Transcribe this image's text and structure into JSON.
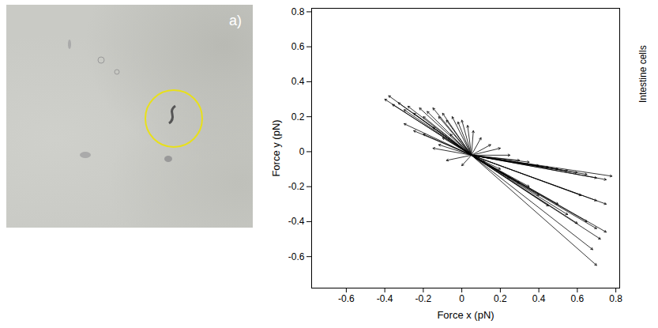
{
  "image_panel": {
    "label": "a)"
  },
  "chart_data": {
    "type": "vector",
    "xlabel": "Force x (pN)",
    "ylabel": "Force y (pN)",
    "annotations": [
      "Intestine cells"
    ],
    "origin": [
      0.05,
      -0.02
    ],
    "x": [
      -0.4,
      -0.38,
      -0.36,
      -0.33,
      -0.3,
      -0.28,
      -0.25,
      -0.22,
      -0.2,
      -0.18,
      -0.15,
      -0.12,
      -0.1,
      -0.08,
      -0.05,
      -0.02,
      0,
      0.03,
      0.06,
      -0.3,
      -0.25,
      -0.2,
      -0.15,
      -0.1,
      -0.12,
      -0.06,
      0.1,
      0.15,
      0.2,
      0.25,
      0.3,
      0.35,
      0.4,
      0.45,
      0.5,
      0.55,
      0.6,
      0.65,
      0.7,
      0.75,
      0.78,
      0.7,
      0.72,
      0.75,
      0.7,
      0.65,
      0.6,
      0.55,
      0.5,
      0.45,
      0.4,
      0.35,
      0.3,
      0.25,
      0.2,
      0.75,
      0.7,
      0.62,
      0.68,
      -0.08,
      0.0,
      0.12,
      -0.15
    ],
    "y": [
      0.3,
      0.32,
      0.27,
      0.28,
      0.24,
      0.26,
      0.22,
      0.25,
      0.2,
      0.23,
      0.25,
      0.2,
      0.22,
      0.18,
      0.2,
      0.17,
      0.18,
      0.15,
      0.12,
      0.16,
      0.12,
      0.1,
      0.14,
      0.08,
      0.04,
      0.1,
      0.08,
      0.04,
      0.02,
      -0.02,
      -0.05,
      -0.06,
      -0.08,
      -0.09,
      -0.1,
      -0.11,
      -0.12,
      -0.13,
      -0.15,
      -0.16,
      -0.14,
      -0.65,
      -0.5,
      -0.46,
      -0.44,
      -0.4,
      -0.41,
      -0.36,
      -0.3,
      -0.31,
      -0.25,
      -0.2,
      -0.18,
      -0.15,
      -0.1,
      -0.3,
      -0.28,
      -0.25,
      -0.56,
      -0.05,
      -0.08,
      -0.06,
      0.02
    ],
    "color": "#000000",
    "marker": "arrow",
    "xlim": [
      -0.78,
      0.82
    ],
    "ylim": [
      -0.78,
      0.82
    ],
    "xticks": [
      -0.6,
      -0.4,
      -0.2,
      0,
      0.2,
      0.4,
      0.6,
      0.8
    ],
    "yticks": [
      -0.6,
      -0.4,
      -0.2,
      0,
      0.2,
      0.4,
      0.6,
      0.8
    ],
    "grid": false
  }
}
